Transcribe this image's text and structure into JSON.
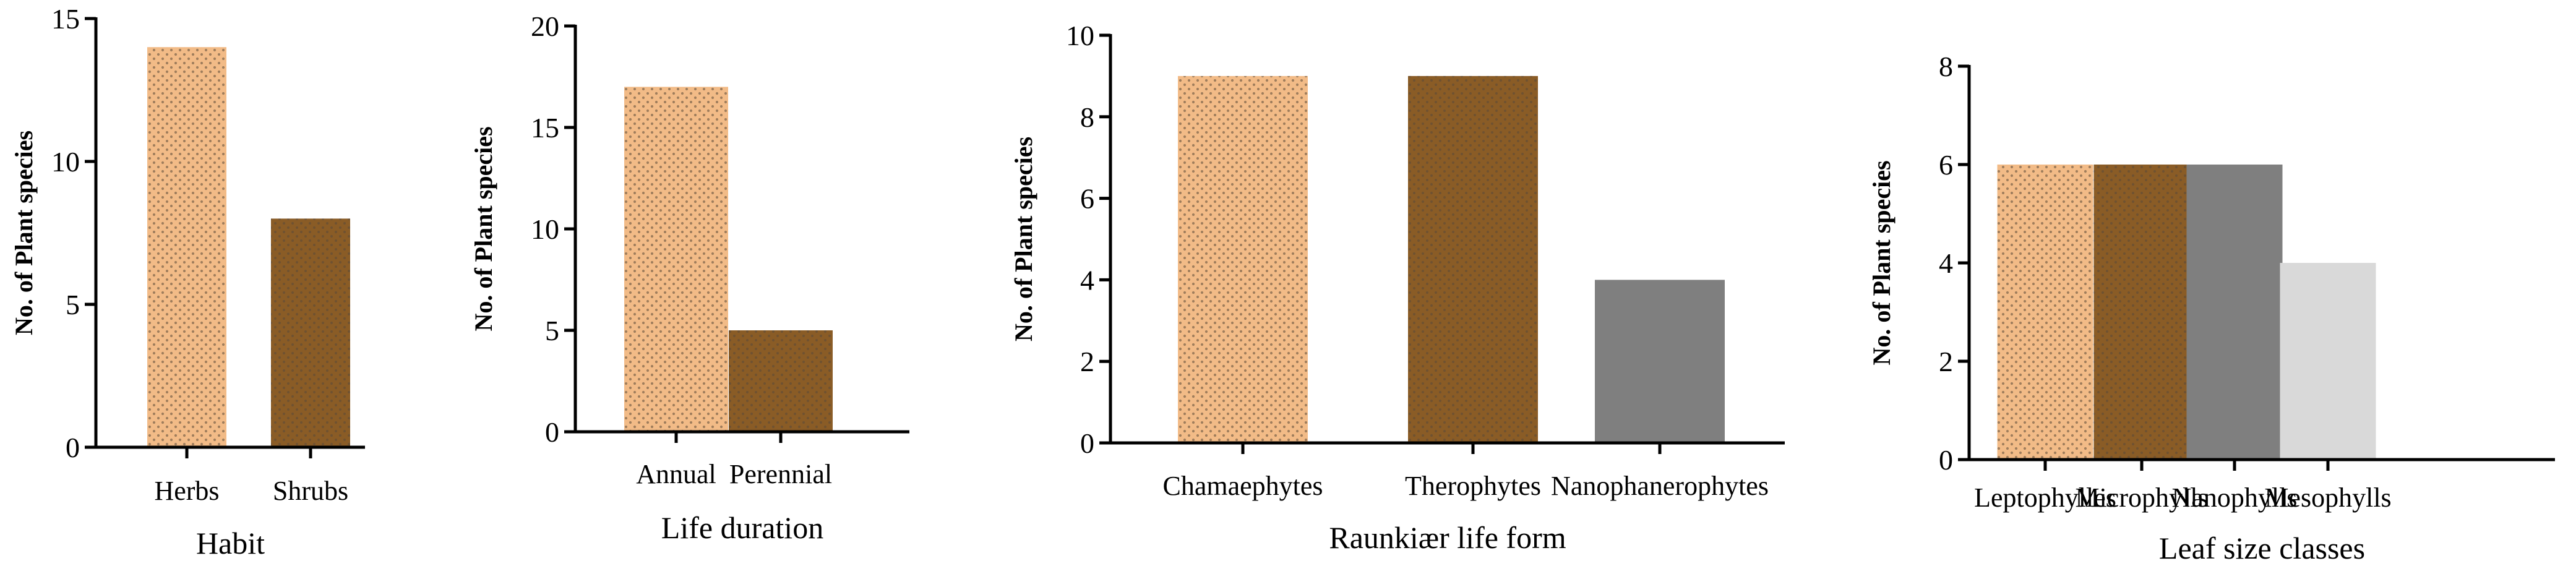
{
  "colors": {
    "light_tan": "#f2bb87",
    "brown": "#8a5c26",
    "gray": "#7f7f7f",
    "light_gray": "#d9d9d9",
    "dot": "#5a4a38"
  },
  "chart_data": [
    {
      "type": "bar",
      "categories": [
        "Herbs",
        "Shrubs"
      ],
      "values": [
        14,
        8
      ],
      "bar_colors": [
        "light_tan",
        "brown"
      ],
      "dotted": [
        true,
        true
      ],
      "xlabel": "Habit",
      "ylabel": "No. of Plant species",
      "ylim": [
        0,
        15
      ],
      "yticks": [
        0,
        5,
        10,
        15
      ],
      "grid": false
    },
    {
      "type": "bar",
      "categories": [
        "Annual",
        "Perennial"
      ],
      "values": [
        17,
        5
      ],
      "bar_colors": [
        "light_tan",
        "brown"
      ],
      "dotted": [
        true,
        true
      ],
      "xlabel": "Life duration",
      "ylabel": "No. of Plant species",
      "ylim": [
        0,
        20
      ],
      "yticks": [
        0,
        5,
        10,
        15,
        20
      ],
      "grid": false
    },
    {
      "type": "bar",
      "categories": [
        "Chamaephytes",
        "Therophytes",
        "Nanophanerophytes"
      ],
      "values": [
        9,
        9,
        4
      ],
      "bar_colors": [
        "light_tan",
        "brown",
        "gray"
      ],
      "dotted": [
        true,
        true,
        false
      ],
      "xlabel": "Raunkiær life form",
      "ylabel": "No. of Plant species",
      "ylim": [
        0,
        10
      ],
      "yticks": [
        0,
        2,
        4,
        6,
        8,
        10
      ],
      "grid": false
    },
    {
      "type": "bar",
      "categories": [
        "Leptophylles",
        "Microphylls",
        "Nanophylls",
        "Mesophylls"
      ],
      "values": [
        6,
        6,
        6,
        4
      ],
      "bar_colors": [
        "light_tan",
        "brown",
        "gray",
        "light_gray"
      ],
      "dotted": [
        true,
        true,
        false,
        false
      ],
      "xlabel": "Leaf size classes",
      "ylabel": "No. of Plant species",
      "ylim": [
        0,
        8
      ],
      "yticks": [
        0,
        2,
        4,
        6,
        8
      ],
      "grid": false
    }
  ]
}
